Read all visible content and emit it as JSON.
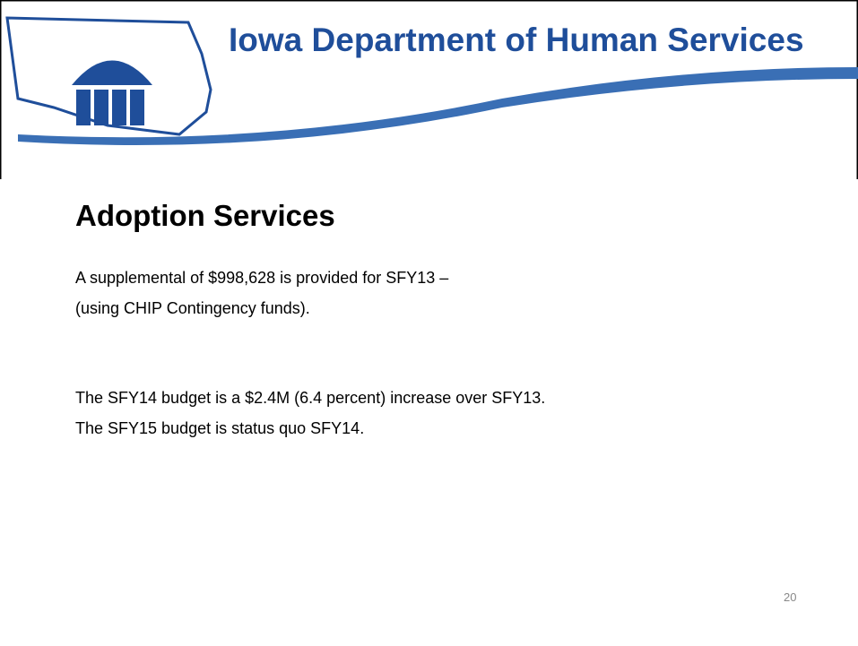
{
  "header": {
    "title": "Iowa Department of Human Services"
  },
  "slide": {
    "title": "Adoption Services",
    "paragraphs": [
      "A supplemental of $998,628 is provided for SFY13 –",
      "(using CHIP Contingency funds).",
      "The SFY14 budget is a $2.4M (6.4 percent) increase over SFY13.",
      "The SFY15 budget is status quo SFY14."
    ],
    "page_number": "20"
  }
}
